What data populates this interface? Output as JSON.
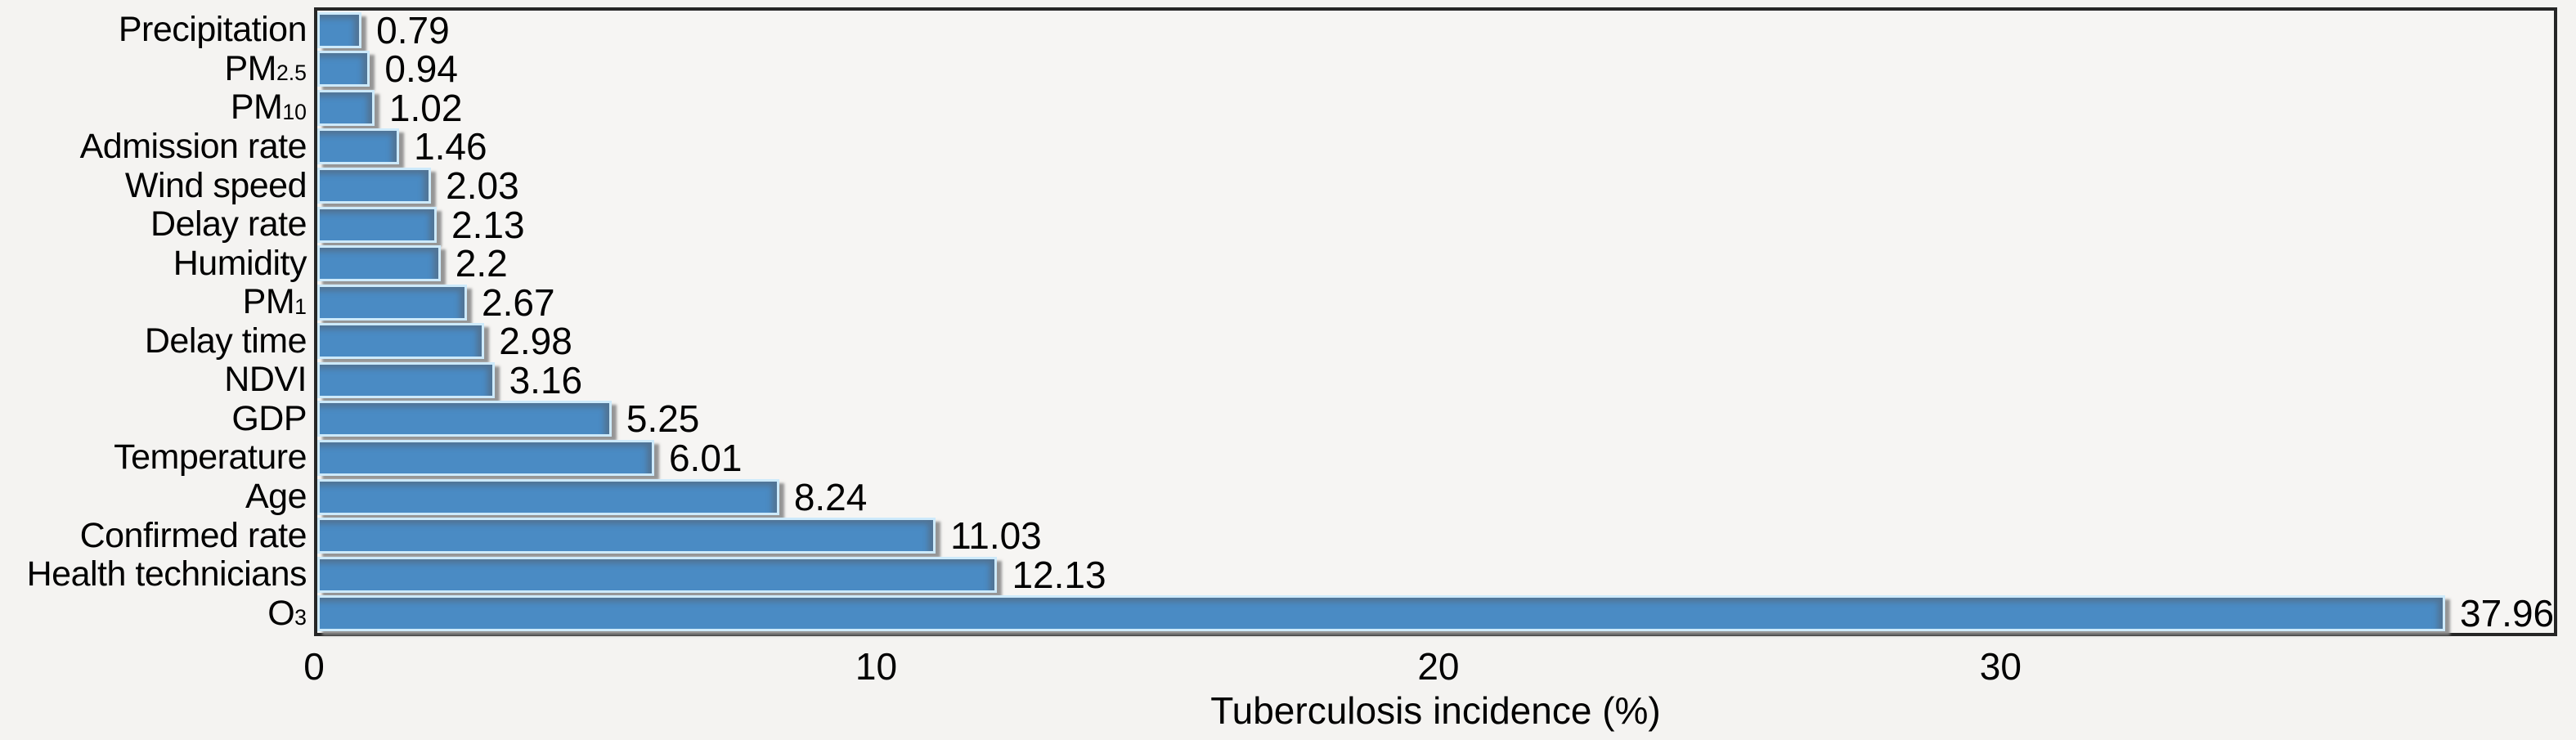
{
  "chart_data": {
    "type": "bar",
    "orientation": "horizontal",
    "title": "",
    "xlabel": "Tuberculosis incidence (%)",
    "ylabel": "",
    "xlim": [
      0,
      39.9
    ],
    "grid": false,
    "legend": null,
    "xticks": [
      {
        "value": 0,
        "label": "0"
      },
      {
        "value": 10,
        "label": "10"
      },
      {
        "value": 20,
        "label": "20"
      },
      {
        "value": 30,
        "label": "30"
      }
    ],
    "bars": [
      {
        "category": "Precipitation",
        "base": "Precipitation",
        "sub": "",
        "value": 0.79,
        "label": "0.79"
      },
      {
        "category": "PM2.5",
        "base": "PM",
        "sub": "2.5",
        "value": 0.94,
        "label": "0.94"
      },
      {
        "category": "PM10",
        "base": "PM",
        "sub": "10",
        "value": 1.02,
        "label": "1.02"
      },
      {
        "category": "Admission rate",
        "base": "Admission rate",
        "sub": "",
        "value": 1.46,
        "label": "1.46"
      },
      {
        "category": "Wind speed",
        "base": "Wind speed",
        "sub": "",
        "value": 2.03,
        "label": "2.03"
      },
      {
        "category": "Delay rate",
        "base": "Delay rate",
        "sub": "",
        "value": 2.13,
        "label": "2.13"
      },
      {
        "category": "Humidity",
        "base": "Humidity",
        "sub": "",
        "value": 2.2,
        "label": "2.2"
      },
      {
        "category": "PM1",
        "base": "PM",
        "sub": "1",
        "value": 2.67,
        "label": "2.67"
      },
      {
        "category": "Delay time",
        "base": "Delay time",
        "sub": "",
        "value": 2.98,
        "label": "2.98"
      },
      {
        "category": "NDVI",
        "base": "NDVI",
        "sub": "",
        "value": 3.16,
        "label": "3.16"
      },
      {
        "category": "GDP",
        "base": "GDP",
        "sub": "",
        "value": 5.25,
        "label": "5.25"
      },
      {
        "category": "Temperature",
        "base": "Temperature",
        "sub": "",
        "value": 6.01,
        "label": "6.01"
      },
      {
        "category": "Age",
        "base": "Age",
        "sub": "",
        "value": 8.24,
        "label": "8.24"
      },
      {
        "category": "Confirmed rate",
        "base": "Confirmed rate",
        "sub": "",
        "value": 11.03,
        "label": "11.03"
      },
      {
        "category": "Health technicians",
        "base": "Health technicians",
        "sub": "",
        "value": 12.13,
        "label": "12.13"
      },
      {
        "category": "O3",
        "base": "O",
        "sub": "3",
        "value": 37.96,
        "label": "37.96"
      }
    ],
    "colors": {
      "bar_fill": "#4a8bc4",
      "bar_border": "#cdeafb",
      "bar_shadow": "#8b8b8b",
      "axis_frame": "#262626",
      "text": "#000000",
      "background": "#f4f3f1"
    }
  }
}
